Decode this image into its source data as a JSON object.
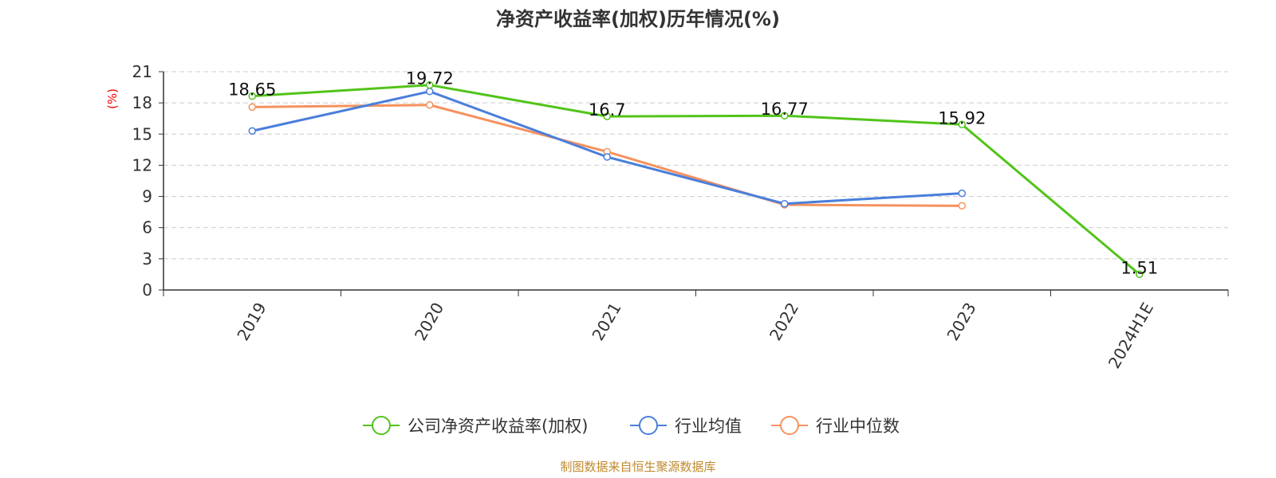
{
  "chart_data": {
    "type": "line",
    "title": "净资产收益率(加权)历年情况(%)",
    "ylabel": "(%)",
    "xlabel": "",
    "categories": [
      "2019",
      "2020",
      "2021",
      "2022",
      "2023",
      "2024H1E"
    ],
    "ylim": [
      0,
      21
    ],
    "yticks": [
      0,
      3,
      6,
      9,
      12,
      15,
      18,
      21
    ],
    "grid": true,
    "legend_position": "bottom",
    "series": [
      {
        "name": "公司净资产收益率(加权)",
        "color": "#52c41a",
        "values": [
          18.65,
          19.72,
          16.7,
          16.77,
          15.92,
          1.51
        ],
        "labels": [
          "18.65",
          "19.72",
          "16.7",
          "16.77",
          "15.92",
          "1.51"
        ]
      },
      {
        "name": "行业均值",
        "color": "#4a7fdb",
        "values": [
          15.3,
          19.1,
          12.8,
          8.3,
          9.3,
          null
        ]
      },
      {
        "name": "行业中位数",
        "color": "#f5925e",
        "values": [
          17.6,
          17.8,
          13.3,
          8.2,
          8.1,
          null
        ]
      }
    ],
    "source": "制图数据来自恒生聚源数据库"
  }
}
